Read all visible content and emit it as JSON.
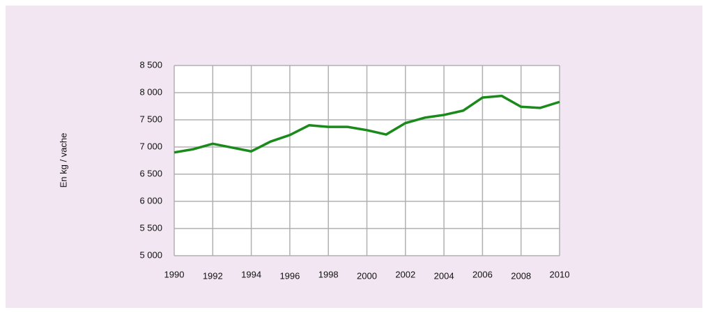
{
  "chart_data": {
    "type": "line",
    "y_label": "En kg / vache",
    "x": [
      1990,
      1991,
      1992,
      1993,
      1994,
      1995,
      1996,
      1997,
      1998,
      1999,
      2000,
      2001,
      2002,
      2003,
      2004,
      2005,
      2006,
      2007,
      2008,
      2009,
      2010
    ],
    "series": [
      {
        "color": "#1a8a1a",
        "values": [
          6900,
          6960,
          7060,
          6990,
          6920,
          7100,
          7220,
          7400,
          7370,
          7370,
          7310,
          7230,
          7440,
          7540,
          7590,
          7670,
          7910,
          7940,
          7740,
          7720,
          7830
        ]
      }
    ],
    "xlim": [
      1990,
      2010
    ],
    "xticks": [
      1990,
      1992,
      1994,
      1996,
      1998,
      2000,
      2002,
      2004,
      2006,
      2008,
      2010
    ],
    "ylim": [
      5000,
      8500
    ],
    "yticks": [
      {
        "value": 5000,
        "label": "5 000"
      },
      {
        "value": 5500,
        "label": "5 500"
      },
      {
        "value": 6000,
        "label": "6 000"
      },
      {
        "value": 6500,
        "label": "6 500"
      },
      {
        "value": 7000,
        "label": "7 000"
      },
      {
        "value": 7500,
        "label": "7 500"
      },
      {
        "value": 8000,
        "label": "8 000"
      },
      {
        "value": 8500,
        "label": "8 500"
      }
    ],
    "grid": true
  }
}
